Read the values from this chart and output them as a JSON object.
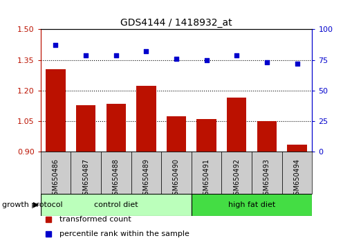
{
  "title": "GDS4144 / 1418932_at",
  "samples": [
    "GSM650486",
    "GSM650487",
    "GSM650488",
    "GSM650489",
    "GSM650490",
    "GSM650491",
    "GSM650492",
    "GSM650493",
    "GSM650494"
  ],
  "bar_values": [
    1.305,
    1.13,
    1.135,
    1.225,
    1.075,
    1.06,
    1.165,
    1.05,
    0.935
  ],
  "dot_values": [
    87,
    79,
    79,
    82,
    76,
    75,
    79,
    73,
    72
  ],
  "ylim_left": [
    0.9,
    1.5
  ],
  "ylim_right": [
    0,
    100
  ],
  "yticks_left": [
    0.9,
    1.05,
    1.2,
    1.35,
    1.5
  ],
  "yticks_right": [
    0,
    25,
    50,
    75,
    100
  ],
  "bar_color": "#bb1100",
  "dot_color": "#0000cc",
  "groups": [
    {
      "label": "control diet",
      "start": 0,
      "end": 5,
      "color": "#bbffbb"
    },
    {
      "label": "high fat diet",
      "start": 5,
      "end": 9,
      "color": "#44dd44"
    }
  ],
  "group_header": "growth protocol",
  "legend_bar": "transformed count",
  "legend_dot": "percentile rank within the sample",
  "tick_bg_color": "#cccccc",
  "plot_bg": "white"
}
